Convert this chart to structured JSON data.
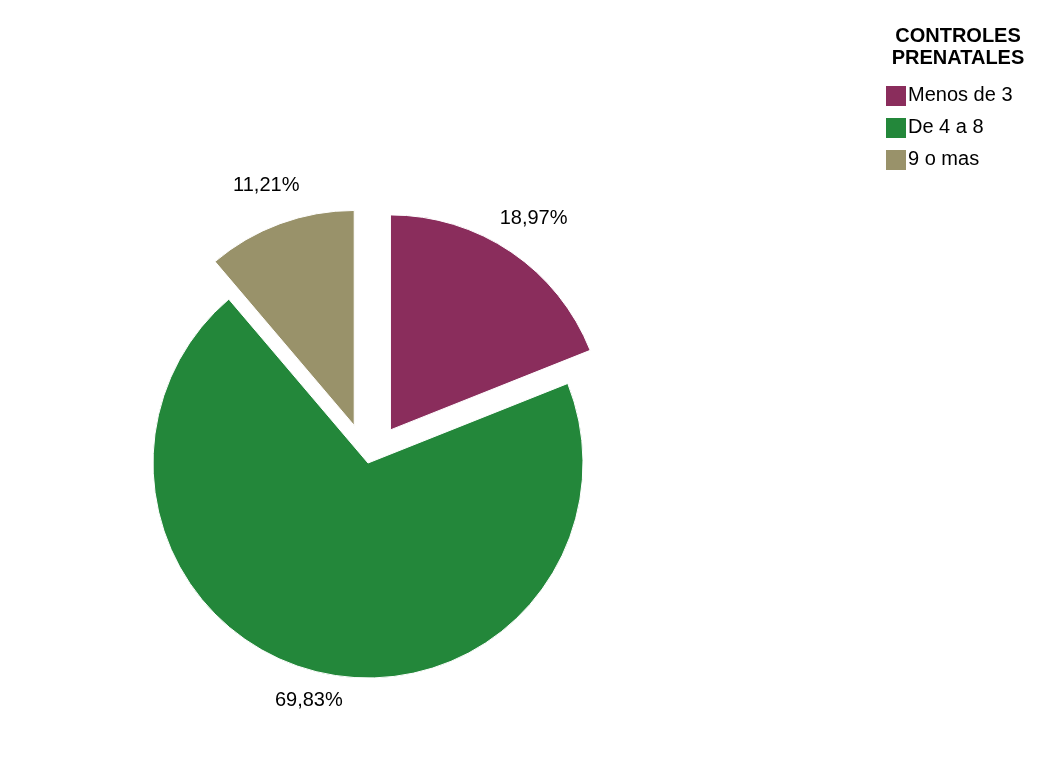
{
  "chart_data": {
    "type": "pie",
    "legend_title": "CONTROLES PRENATALES",
    "categories": [
      "Menos de 3",
      "De 4 a 8",
      "9 o mas"
    ],
    "values": [
      18.97,
      69.83,
      11.21
    ],
    "colors": [
      "#8a2d5c",
      "#23873a",
      "#99926a"
    ],
    "value_labels": [
      "18,97%",
      "69,83%",
      "11,21%"
    ],
    "legend": "top right"
  }
}
